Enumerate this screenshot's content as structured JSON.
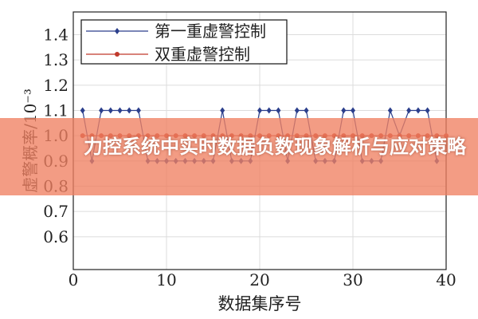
{
  "chart_data": {
    "type": "line",
    "title": "",
    "xlabel": "数据集序号",
    "ylabel": "虚警概率/10⁻³",
    "xlim": [
      0,
      40
    ],
    "ylim": [
      0.47,
      1.49
    ],
    "xticks": [
      0,
      10,
      20,
      30,
      40
    ],
    "yticks": [
      0.6,
      0.7,
      0.8,
      0.9,
      1.0,
      1.1,
      1.2,
      1.3,
      1.4
    ],
    "grid": true,
    "legend_position": "top-left",
    "series": [
      {
        "name": "第一重虚警控制",
        "color": "#2b3f8c",
        "marker": "diamond",
        "x": [
          1,
          2,
          3,
          4,
          5,
          6,
          7,
          8,
          9,
          10,
          11,
          12,
          13,
          14,
          15,
          16,
          17,
          18,
          19,
          20,
          21,
          22,
          23,
          24,
          25,
          26,
          27,
          28,
          29,
          30,
          31,
          32,
          33,
          34,
          35,
          36,
          37,
          38,
          39
        ],
        "y": [
          1.1,
          0.9,
          1.1,
          1.1,
          1.1,
          1.1,
          1.1,
          0.9,
          0.9,
          0.9,
          0.9,
          0.9,
          0.9,
          0.9,
          0.9,
          1.1,
          0.9,
          0.9,
          0.9,
          1.1,
          1.1,
          1.1,
          0.9,
          1.1,
          1.1,
          0.9,
          0.9,
          0.9,
          1.1,
          1.1,
          0.9,
          0.9,
          0.9,
          1.1,
          1.0,
          1.1,
          1.1,
          1.1,
          0.9
        ]
      },
      {
        "name": "双重虚警控制",
        "color": "#c0392b",
        "marker": "circle",
        "x": [
          1,
          2,
          3,
          4,
          5,
          6,
          7,
          8,
          9,
          10,
          11,
          12,
          13,
          14,
          15,
          16,
          17,
          18,
          19,
          20,
          21,
          22,
          23,
          24,
          25,
          26,
          27,
          28,
          29,
          30,
          31,
          32,
          33,
          34,
          35,
          36,
          37,
          38,
          39,
          40
        ],
        "y": [
          1.0,
          1.0,
          1.0,
          1.0,
          1.0,
          1.0,
          1.0,
          1.0,
          1.0,
          1.0,
          1.0,
          1.0,
          1.0,
          1.0,
          1.0,
          1.0,
          1.0,
          1.0,
          1.0,
          1.0,
          1.0,
          1.0,
          1.0,
          1.0,
          1.0,
          1.0,
          1.0,
          1.0,
          1.0,
          1.0,
          1.0,
          1.0,
          1.0,
          1.0,
          1.0,
          1.0,
          1.0,
          1.0,
          1.0,
          1.0
        ]
      }
    ]
  },
  "banner": {
    "title": "力控系统中实时数据负数现象解析与应对策略"
  }
}
